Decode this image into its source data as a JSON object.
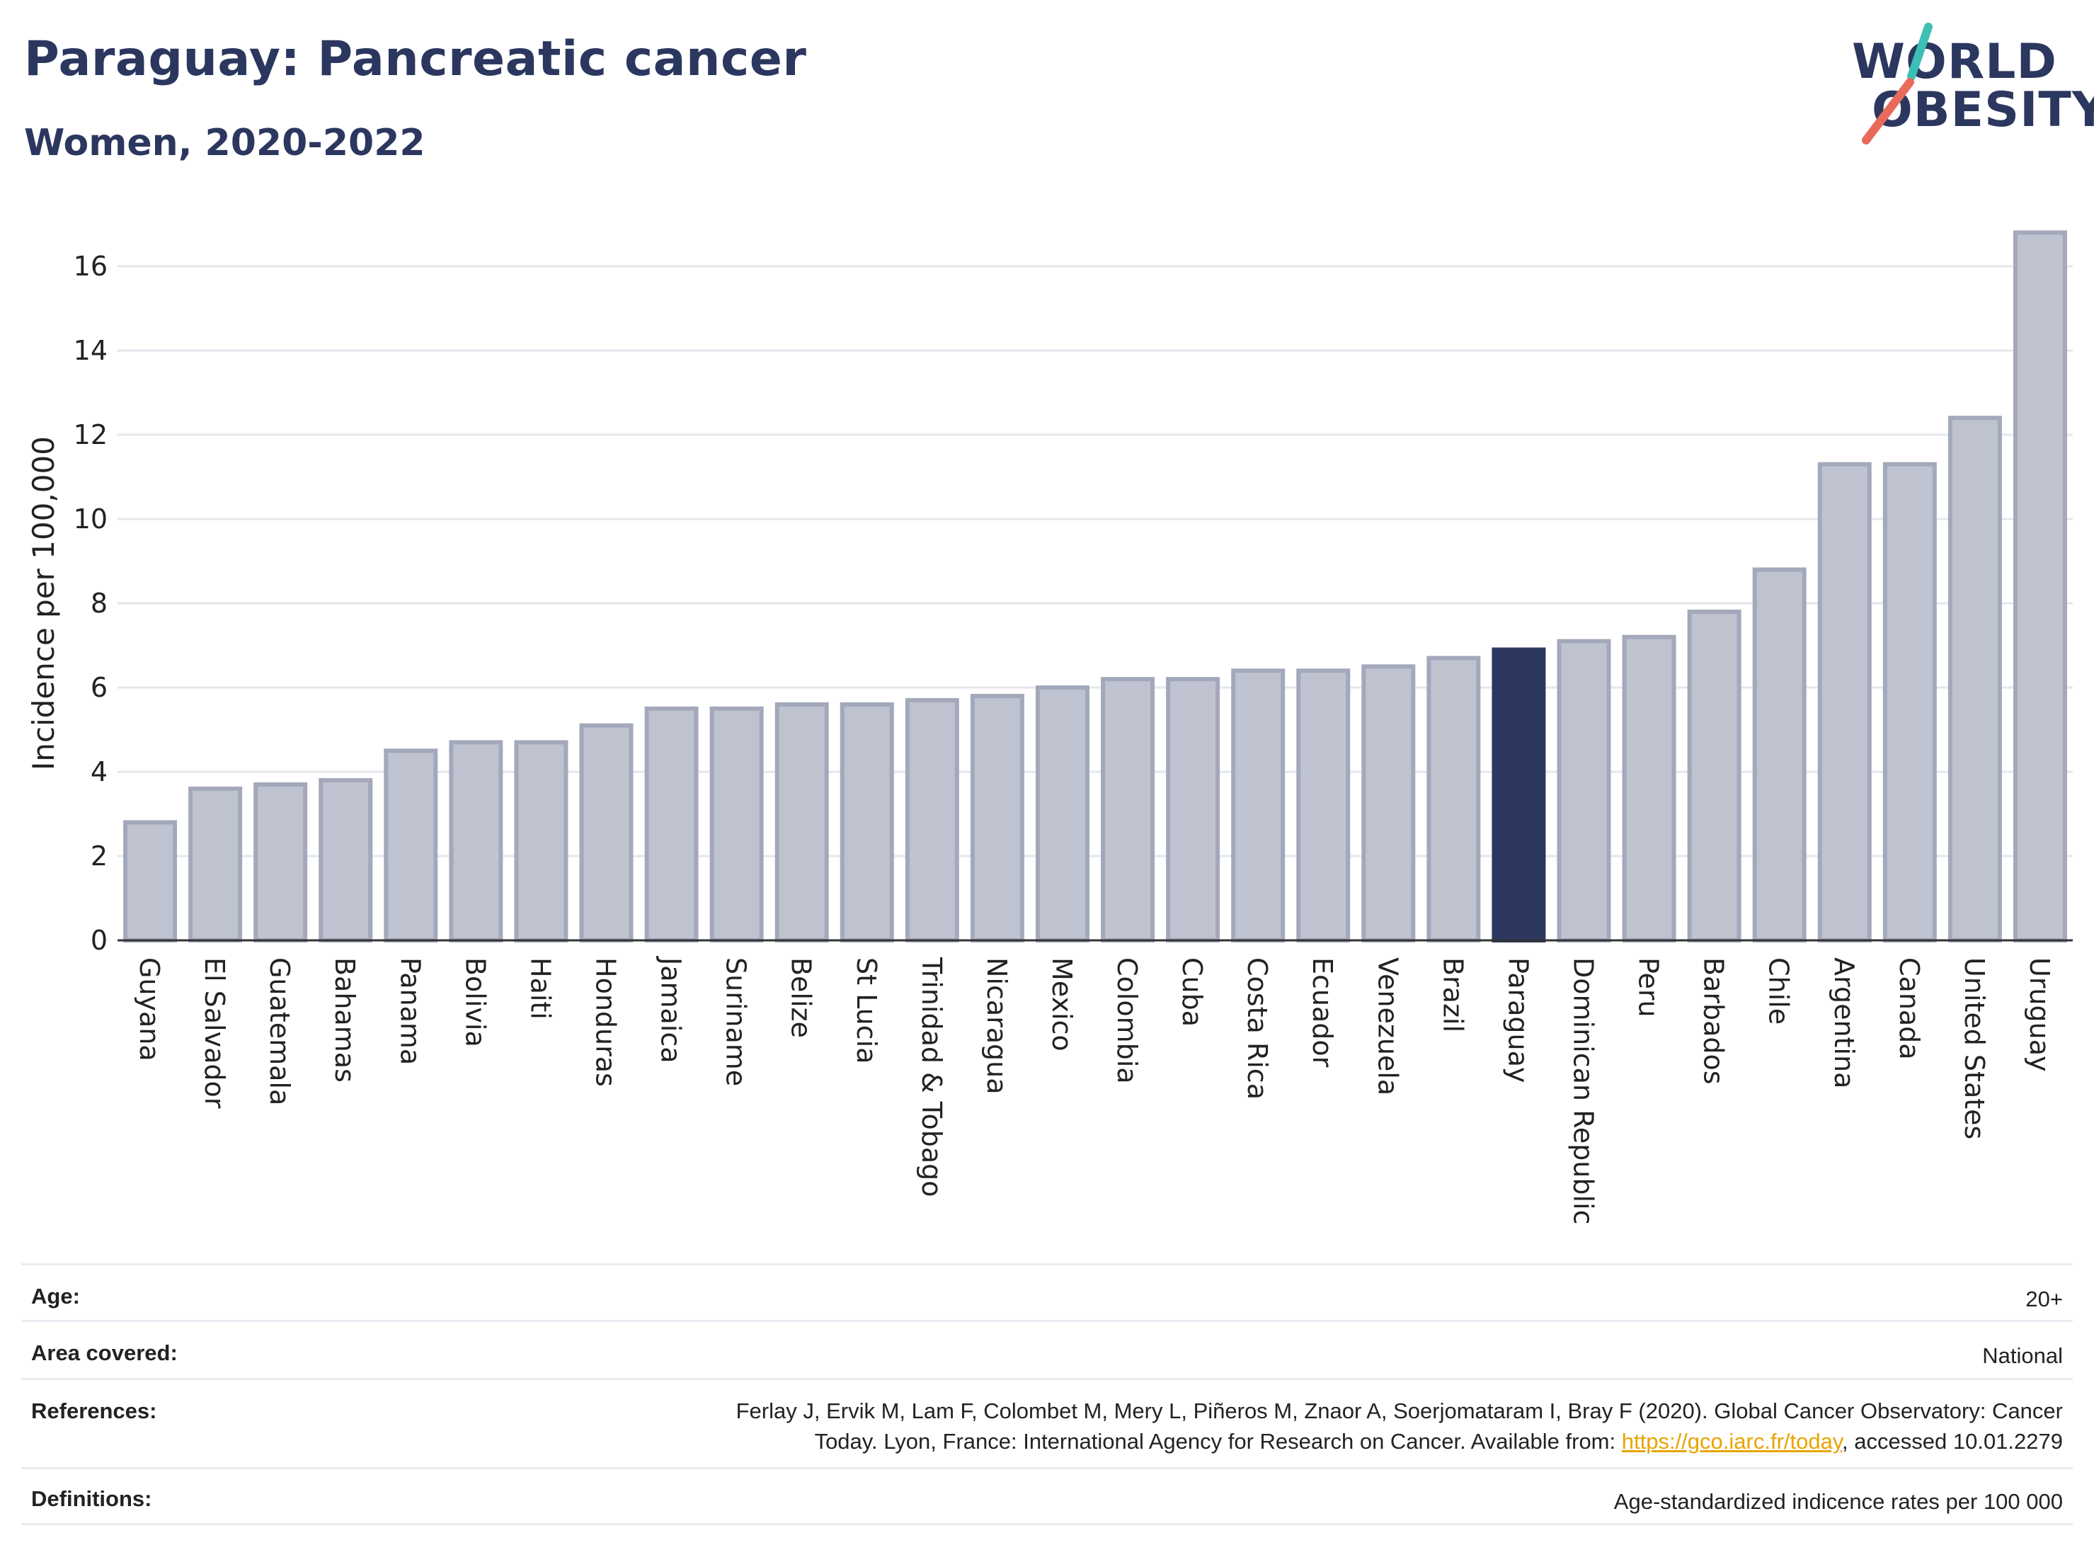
{
  "header": {
    "title": "Paraguay: Pancreatic cancer",
    "subtitle": "Women, 2020-2022"
  },
  "logo": {
    "line1": "WORLD",
    "line2": "OBESITY",
    "stroke_colors": [
      "#3cbfb4",
      "#e86a5a"
    ]
  },
  "colors": {
    "bar": "#bfc3d0",
    "bar_border": "#a3a8bb",
    "highlight": "#2b375f",
    "axis_text": "#222222",
    "grid": "#e6e6ee"
  },
  "chart_data": {
    "type": "bar",
    "ylabel": "Incidence per 100,000",
    "ylim": [
      0,
      17
    ],
    "yticks": [
      0,
      2,
      4,
      6,
      8,
      10,
      12,
      14,
      16
    ],
    "grid": true,
    "highlight": "Paraguay",
    "categories": [
      "Guyana",
      "El Salvador",
      "Guatemala",
      "Bahamas",
      "Panama",
      "Bolivia",
      "Haiti",
      "Honduras",
      "Jamaica",
      "Suriname",
      "Belize",
      "St Lucia",
      "Trinidad & Tobago",
      "Nicaragua",
      "Mexico",
      "Colombia",
      "Cuba",
      "Costa Rica",
      "Ecuador",
      "Venezuela",
      "Brazil",
      "Paraguay",
      "Dominican Republic",
      "Peru",
      "Barbados",
      "Chile",
      "Argentina",
      "Canada",
      "United States",
      "Uruguay"
    ],
    "values": [
      2.8,
      3.6,
      3.7,
      3.8,
      4.5,
      4.7,
      4.7,
      5.1,
      5.5,
      5.5,
      5.6,
      5.6,
      5.7,
      5.8,
      6.0,
      6.2,
      6.2,
      6.4,
      6.4,
      6.5,
      6.7,
      6.9,
      7.1,
      7.2,
      7.8,
      8.8,
      11.3,
      11.3,
      12.4,
      16.8
    ]
  },
  "meta": {
    "age_label": "Age:",
    "age_value": "20+",
    "area_label": "Area covered:",
    "area_value": "National",
    "references_label": "References:",
    "references_line1": "Ferlay J, Ervik M, Lam F, Colombet M, Mery L, Piñeros M, Znaor A, Soerjomataram I, Bray F (2020). Global Cancer Observatory: Cancer",
    "references_line2_pre": "Today. Lyon, France: International Agency for Research on Cancer. Available from: ",
    "references_link": "https://gco.iarc.fr/today",
    "references_line2_post": ", accessed 10.01.2279",
    "definitions_label": "Definitions:",
    "definitions_value": "Age-standardized indicence rates per 100 000"
  }
}
